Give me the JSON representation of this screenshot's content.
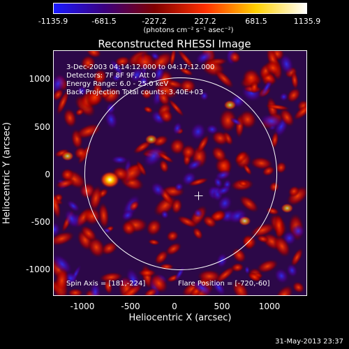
{
  "colorbar": {
    "ticks": [
      "-1135.9",
      "-681.5",
      "-227.2",
      "227.2",
      "681.5",
      "1135.9"
    ],
    "unit": "(photons cm⁻² s⁻¹ asec⁻²)",
    "colors": [
      "#1a1aff",
      "#3b0080",
      "#800000",
      "#ff3000",
      "#ffd000",
      "#ffffff"
    ]
  },
  "title": "Reconstructed RHESSI Image",
  "annotations": {
    "time": "3-Dec-2003 04:14:12.000 to 04:17:12.000",
    "detectors": "Detectors: 7F 8F 9F, Att 0",
    "energy": "Energy Range: 6.0 - 25.0 keV",
    "method": "Back Projection    Total counts: 3.40E+03",
    "spin_axis": "Spin Axis = [181,-224]",
    "flare_position": "Flare Position = [-720,-60]"
  },
  "axes": {
    "xlabel": "Heliocentric X (arcsec)",
    "ylabel": "Heliocentric Y (arcsec)",
    "xticks": [
      "-1000",
      "-500",
      "0",
      "500",
      "1000"
    ],
    "yticks": [
      "1000",
      "500",
      "0",
      "-500",
      "-1000"
    ],
    "xrange": [
      -1290,
      1290
    ],
    "yrange": [
      -1250,
      1250
    ]
  },
  "timestamp": "31-May-2013 23:37"
}
